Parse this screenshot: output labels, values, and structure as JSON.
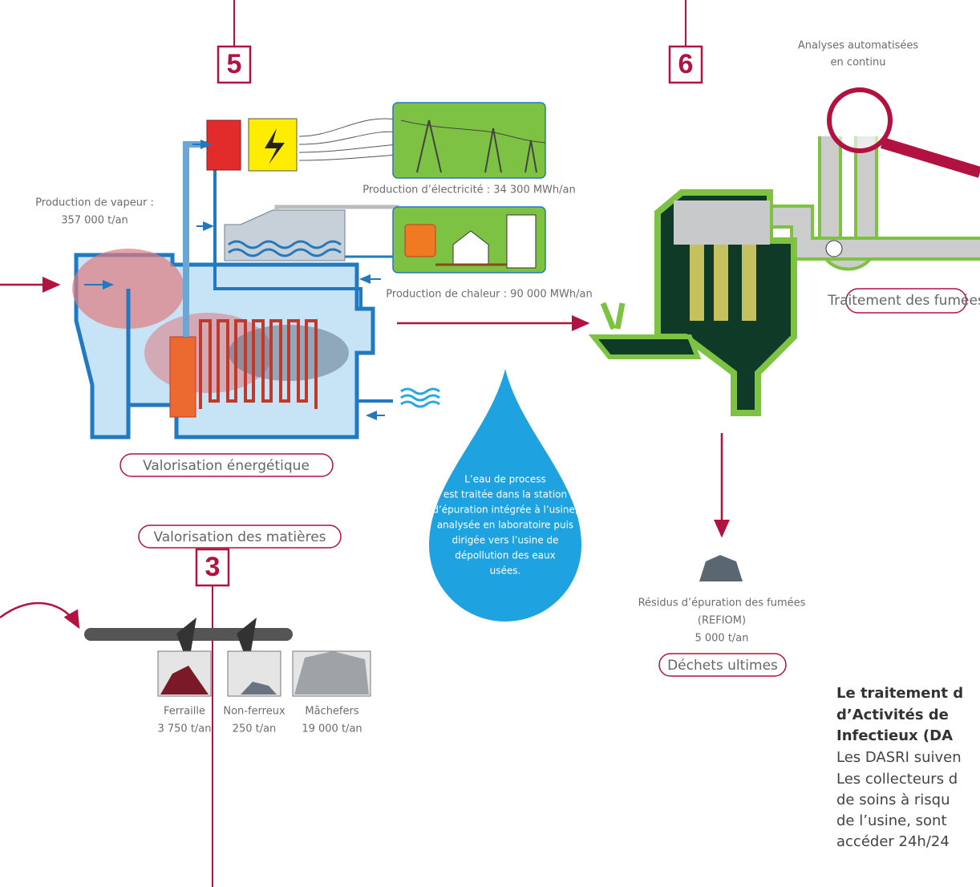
{
  "steps": {
    "energy": "5",
    "fumes": "6",
    "materials": "3"
  },
  "energy": {
    "title": "Valorisation énergétique",
    "steam": [
      "Production de vapeur :",
      "357 000 t/an"
    ],
    "electricity": "Production d’électricité : 34 300 MWh/an",
    "heat": "Production de chaleur : 90 000 MWh/an"
  },
  "water_note": [
    "L’eau de process",
    "est traitée dans la station",
    "d’épuration intégrée à l’usine,",
    "analysée en laboratoire puis",
    "dirigée vers l’usine de",
    "dépollution des eaux",
    "usées."
  ],
  "fumes": {
    "title": "Traitement des fumées",
    "analysis": [
      "Analyses automatisées",
      "en continu"
    ],
    "residues": [
      "Résidus d’épuration des fumées",
      "(REFIOM)",
      "5 000 t/an"
    ],
    "residues_title": "Déchets ultimes"
  },
  "materials": {
    "title": "Valorisation des matières",
    "items": [
      {
        "name": "Ferraille",
        "amount": "3 750 t/an"
      },
      {
        "name": "Non-ferreux",
        "amount": "250 t/an"
      },
      {
        "name": "Mâchefers",
        "amount": "19 000 t/an"
      }
    ]
  },
  "dasri": {
    "heading": [
      "Le traitement d",
      "d’Activités de",
      "Infectieux (DA"
    ],
    "body": [
      "Les DASRI suiven",
      "Les collecteurs d",
      "de soins à risqu",
      "de l’usine, sont",
      "accéder 24h/24"
    ]
  }
}
